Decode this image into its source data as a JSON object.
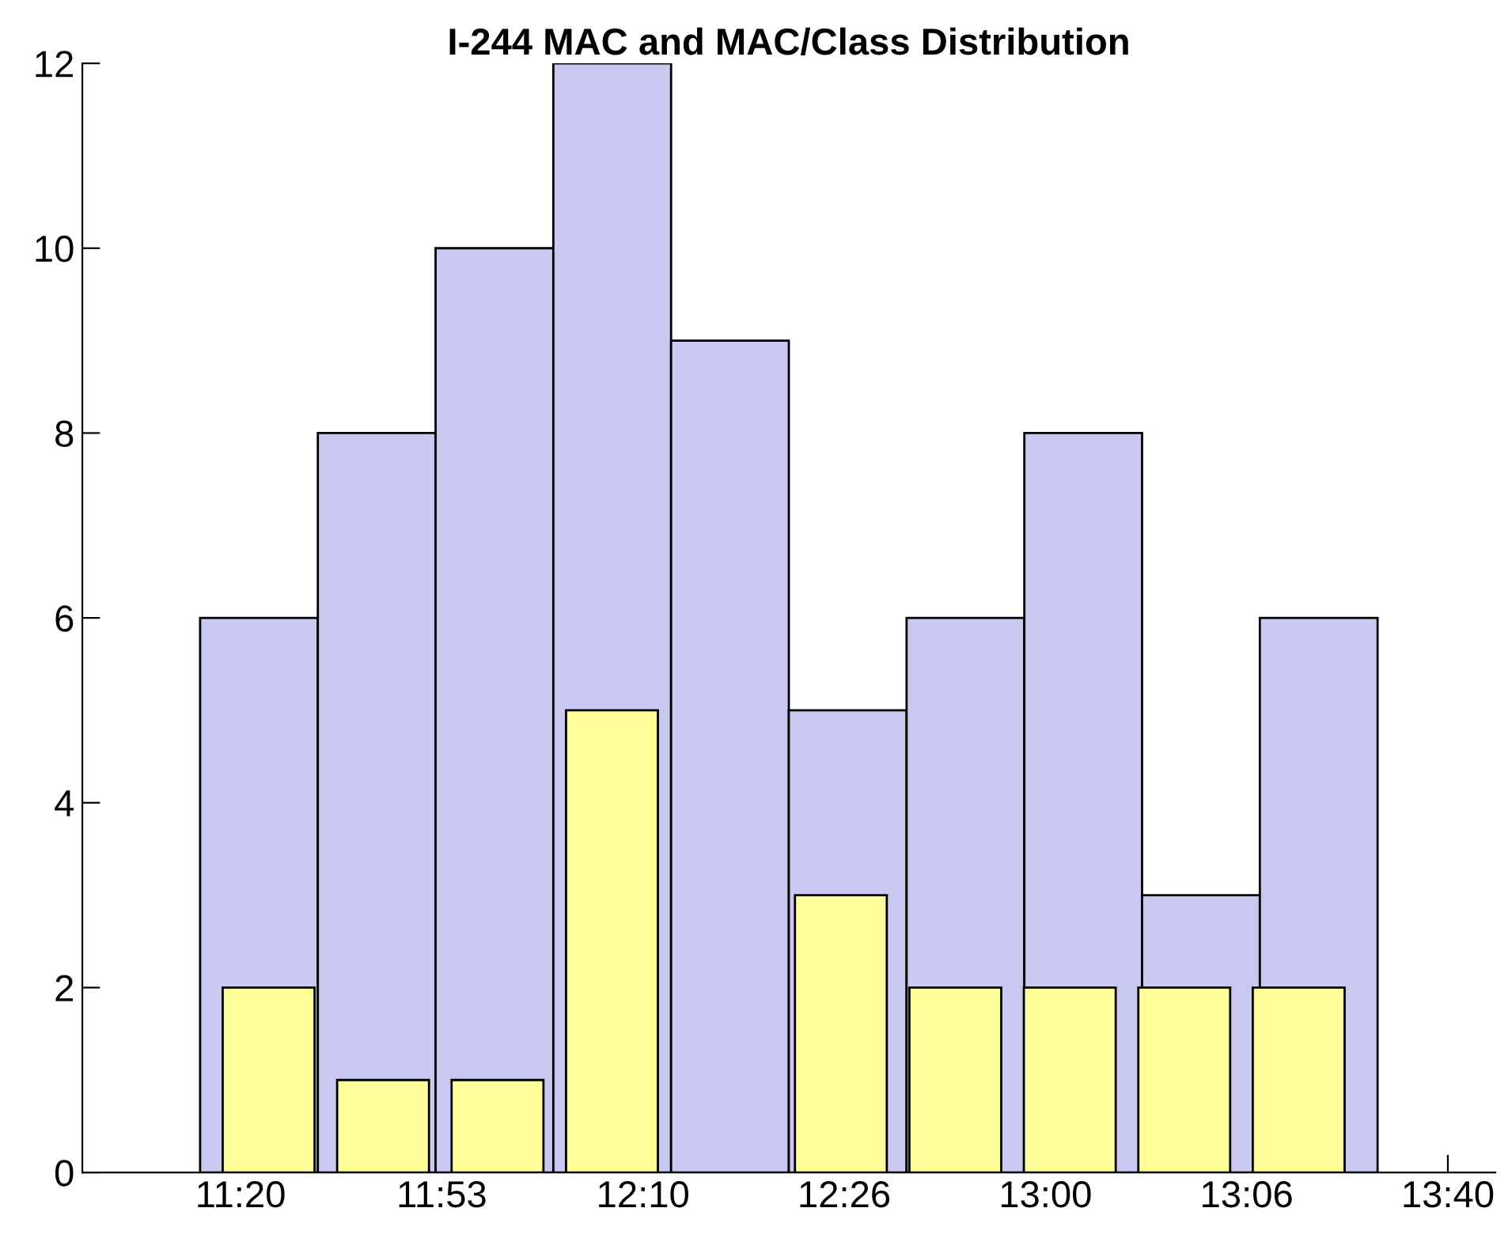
{
  "chart_data": {
    "type": "bar",
    "title": "I-244 MAC and MAC/Class Distribution",
    "categories": [
      null,
      null,
      null,
      null,
      null,
      null,
      null,
      null,
      null,
      null,
      null,
      null
    ],
    "series": [
      {
        "color": "#c8c8f0",
        "values": [
          null,
          6,
          8,
          10,
          12,
          9,
          5,
          6,
          8,
          3,
          6,
          null
        ]
      },
      {
        "color": "#ffff99",
        "values": [
          null,
          2,
          1,
          1,
          5,
          null,
          3,
          2,
          2,
          2,
          2,
          null
        ]
      }
    ],
    "annotations": [
      "11:20",
      "11:53",
      "12:10",
      "12:26",
      "13:00",
      "13:06",
      "13:40"
    ],
    "ylim": [
      0,
      12
    ],
    "yticks": [
      0,
      2,
      4,
      6,
      8,
      10,
      12
    ],
    "grid": false,
    "legend": false
  }
}
